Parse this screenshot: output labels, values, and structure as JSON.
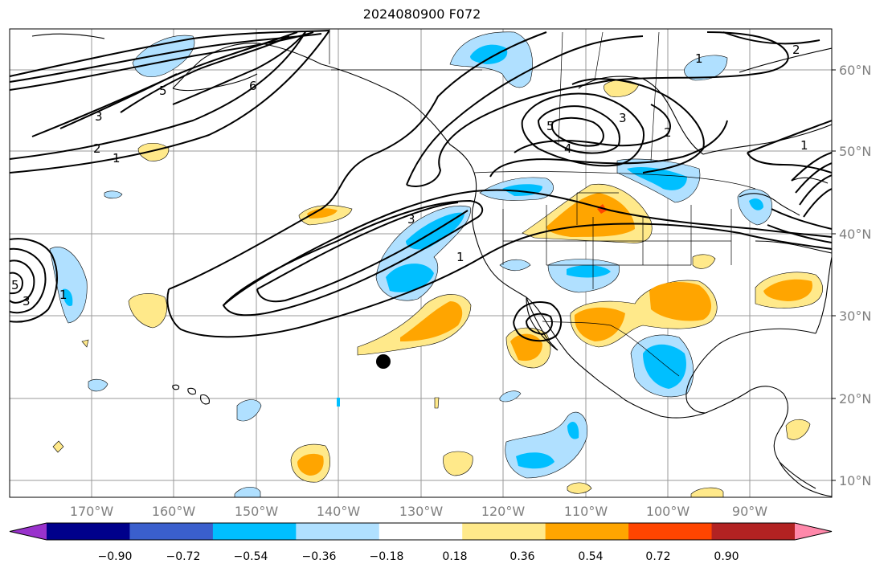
{
  "title": "2024080900 F072",
  "lon_labels": [
    "170°W",
    "160°W",
    "150°W",
    "140°W",
    "130°W",
    "120°W",
    "110°W",
    "100°W",
    "90°W"
  ],
  "lat_labels": [
    "60°N",
    "50°N",
    "40°N",
    "30°N",
    "20°N",
    "10°N"
  ],
  "colorbar": {
    "ticks": [
      "−0.90",
      "−0.72",
      "−0.54",
      "−0.36",
      "−0.18",
      "0.18",
      "0.36",
      "0.54",
      "0.72",
      "0.90"
    ],
    "colors": [
      "#9932cc",
      "#00008b",
      "#3a5fcd",
      "#00bfff",
      "#b0e0ff",
      "#ffffff",
      "#ffe98a",
      "#ffa500",
      "#ff4500",
      "#b22222",
      "#ff88aa"
    ]
  },
  "contour_labels": [
    "1",
    "2",
    "3",
    "4",
    "5",
    "6"
  ],
  "marker": "storm-center"
}
